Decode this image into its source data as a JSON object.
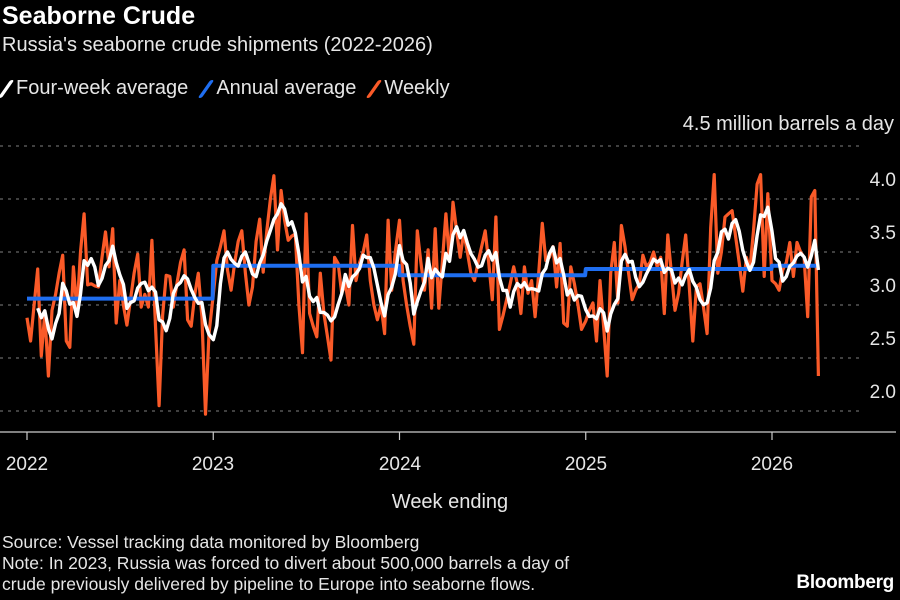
{
  "title": "Seaborne Crude",
  "subtitle": "Russia's seaborne crude shipments (2022-2026)",
  "source": "Source: Vessel tracking data monitored by Bloomberg",
  "note_line1": "Note: In 2023, Russia was forced to divert about 500,000 barrels a day of",
  "note_line2": "crude previously delivered by pipeline to Europe into seaborne flows.",
  "logo": "Bloomberg",
  "chart_data": {
    "type": "line",
    "title": "Seaborne Crude",
    "xlabel": "Week ending",
    "ylabel": "",
    "unit_label": "4.5 million barrels a day",
    "ylim": [
      1.8,
      4.5
    ],
    "y_ticks": [
      "4.0",
      "3.5",
      "3.0",
      "2.5",
      "2.0"
    ],
    "y_tick_values": [
      4.0,
      3.5,
      3.0,
      2.5,
      2.0
    ],
    "x_ticks": [
      "2022",
      "2023",
      "2024",
      "2025",
      "2026"
    ],
    "grid": true,
    "legend_placement": "top-left",
    "colors": {
      "four_week": "#ffffff",
      "annual": "#1f6ef0",
      "weekly": "#fa5a28",
      "background": "#000000"
    },
    "series": [
      {
        "name": "Four-week average",
        "derived_from": "Weekly",
        "window_weeks": 4
      },
      {
        "name": "Annual average",
        "values_by_year": {
          "2022": 3.06,
          "2023": 3.37,
          "2024": 3.28,
          "2025": 3.34,
          "2026": 3.37
        }
      },
      {
        "name": "Weekly",
        "values_by_year": {
          "2022": [
            2.88,
            2.66,
            3.0,
            3.34,
            2.52,
            2.92,
            2.33,
            2.95,
            3.1,
            3.3,
            3.47,
            2.66,
            2.6,
            3.36,
            2.95,
            3.5,
            3.86,
            3.19,
            3.2,
            3.18,
            3.17,
            3.45,
            3.69,
            3.36,
            3.72,
            2.83,
            3.23,
            3.0,
            2.81,
            3.05,
            3.3,
            3.48,
            2.98,
            3.1,
            2.98,
            3.61,
            2.8,
            2.05,
            2.9,
            3.28,
            3.27,
            2.98,
            3.2,
            3.4,
            3.52,
            2.86,
            2.8,
            3.1,
            3.3,
            2.89,
            1.97,
            2.73
          ],
          "2023": [
            3.1,
            3.42,
            3.55,
            3.7,
            3.33,
            3.14,
            3.4,
            3.6,
            3.7,
            3.3,
            3.0,
            3.17,
            3.6,
            3.81,
            3.31,
            3.7,
            4.0,
            4.22,
            3.52,
            4.08,
            3.8,
            3.61,
            3.65,
            3.67,
            3.0,
            2.55,
            3.86,
            2.92,
            2.8,
            2.7,
            3.3,
            2.92,
            2.7,
            2.48,
            3.45,
            3.39,
            3.11,
            3.2,
            3.0,
            3.75,
            3.23,
            3.4,
            3.5,
            3.66,
            3.23,
            3.0,
            2.86,
            3.0,
            2.73,
            3.8,
            3.14,
            3.5
          ],
          "2024": [
            3.8,
            3.23,
            3.0,
            2.8,
            2.63,
            3.7,
            3.4,
            3.14,
            3.52,
            2.97,
            3.72,
            2.97,
            3.4,
            3.86,
            3.42,
            3.97,
            3.7,
            3.45,
            3.69,
            3.5,
            3.3,
            3.23,
            3.4,
            3.55,
            3.7,
            3.4,
            3.05,
            3.83,
            2.77,
            2.9,
            3.05,
            3.2,
            3.36,
            3.2,
            2.92,
            3.36,
            3.11,
            3.23,
            2.89,
            3.3,
            3.77,
            3.42,
            3.45,
            3.55,
            3.17,
            3.58,
            2.83,
            2.8,
            3.36,
            3.2,
            3.0,
            2.77
          ],
          "2025": [
            2.85,
            2.95,
            3.02,
            2.66,
            3.23,
            2.8,
            2.33,
            3.3,
            3.59,
            3.02,
            3.75,
            3.55,
            3.3,
            3.05,
            3.14,
            3.2,
            3.47,
            3.36,
            3.4,
            3.5,
            3.36,
            3.45,
            2.92,
            3.66,
            3.3,
            2.95,
            3.11,
            3.4,
            3.66,
            3.17,
            2.66,
            3.17,
            3.2,
            2.98,
            2.73,
            3.73,
            4.23,
            3.3,
            3.5,
            3.83,
            3.86,
            3.89,
            3.64,
            3.4,
            3.13,
            3.45,
            3.33,
            3.7,
            4.14,
            4.23,
            3.27,
            4.05
          ],
          "2026": [
            3.23,
            3.2,
            3.14,
            3.33,
            3.4,
            3.59,
            3.27,
            3.59,
            3.5,
            3.45,
            2.89,
            4.02,
            4.08,
            2.33
          ]
        }
      }
    ]
  }
}
